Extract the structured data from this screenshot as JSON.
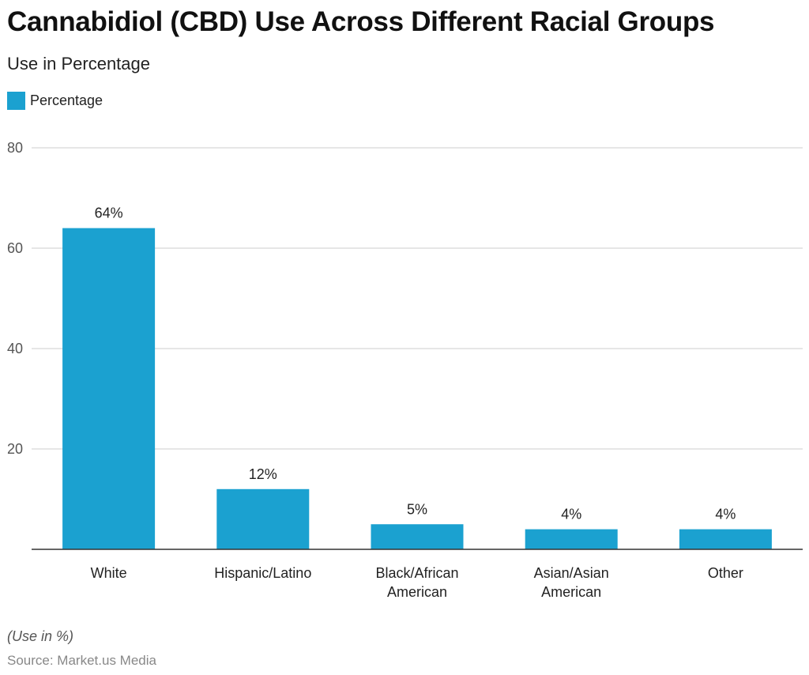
{
  "header": {
    "title": "Cannabidiol (CBD) Use Across Different Racial Groups",
    "subtitle": "Use in Percentage"
  },
  "footer": {
    "note": "(Use in %)",
    "source": "Source: Market.us Media"
  },
  "colors": {
    "bar": "#1ba1d0",
    "grid": "#cccccc",
    "axis": "#333333"
  },
  "chart_data": {
    "type": "bar",
    "title": "Cannabidiol (CBD) Use Across Different Racial Groups",
    "subtitle": "Use in Percentage",
    "xlabel": "",
    "ylabel": "",
    "categories": [
      [
        "White"
      ],
      [
        "Hispanic/Latino"
      ],
      [
        "Black/African",
        "American"
      ],
      [
        "Asian/Asian",
        "American"
      ],
      [
        "Other"
      ]
    ],
    "series": [
      {
        "name": "Percentage",
        "values": [
          64,
          12,
          5,
          4,
          4
        ],
        "labels": [
          "64%",
          "12%",
          "5%",
          "4%",
          "4%"
        ]
      }
    ],
    "ylim": [
      0,
      80
    ],
    "yticks": [
      20,
      40,
      60,
      80
    ],
    "grid": true,
    "legend": "top-left"
  }
}
